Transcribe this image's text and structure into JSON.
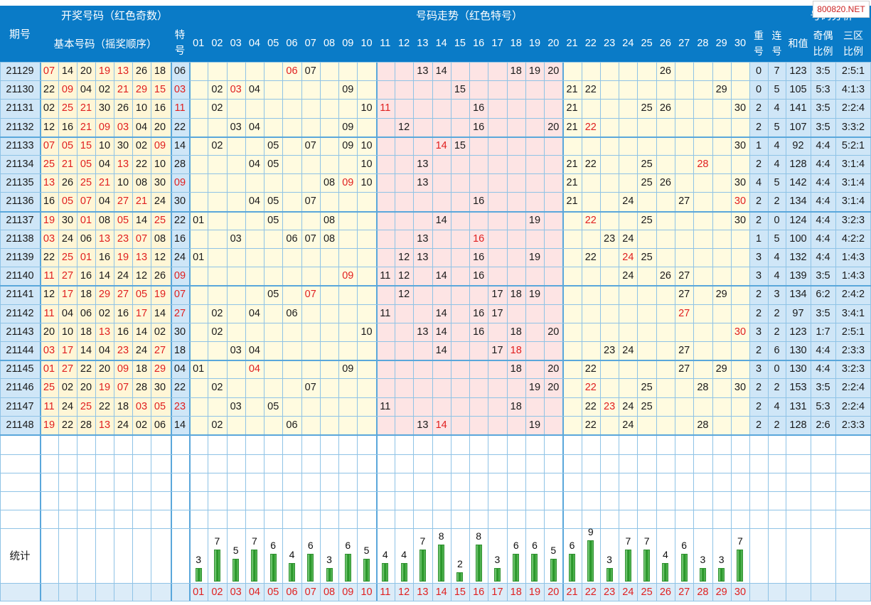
{
  "header": {
    "qihao": "期号",
    "kaijiang": "开奖号码（红色奇数）",
    "jiben": "基本号码（摇奖顺序）",
    "tehao": "特号",
    "zoushi": "号码走势（红色特号）",
    "fenxi": "号码分析",
    "chonghao": "重号",
    "lianhao": "连号",
    "hezhi": "和值",
    "jiou": "奇偶比例",
    "sanqu": "三区比例",
    "watermark": "800820.NET"
  },
  "numbers": [
    "01",
    "02",
    "03",
    "04",
    "05",
    "06",
    "07",
    "08",
    "09",
    "10",
    "11",
    "12",
    "13",
    "14",
    "15",
    "16",
    "17",
    "18",
    "19",
    "20",
    "21",
    "22",
    "23",
    "24",
    "25",
    "26",
    "27",
    "28",
    "29",
    "30"
  ],
  "stats_label": "统计",
  "colors": {
    "header_blue": "#0a7bc7",
    "odd_red": "#e02020",
    "bar_green": "#2e9a2e"
  },
  "chart_data": {
    "type": "table",
    "periods": [
      {
        "id": "21129",
        "basic": [
          "07",
          "14",
          "20",
          "19",
          "13",
          "26",
          "18"
        ],
        "special": "06",
        "repeat": "0",
        "consec": "7",
        "sum": "123",
        "odd_even": "3:5",
        "three_zone": "2:5:1"
      },
      {
        "id": "21130",
        "basic": [
          "22",
          "09",
          "04",
          "02",
          "21",
          "29",
          "15"
        ],
        "special": "03",
        "repeat": "0",
        "consec": "5",
        "sum": "105",
        "odd_even": "5:3",
        "three_zone": "4:1:3"
      },
      {
        "id": "21131",
        "basic": [
          "02",
          "25",
          "21",
          "30",
          "26",
          "10",
          "16"
        ],
        "special": "11",
        "repeat": "2",
        "consec": "4",
        "sum": "141",
        "odd_even": "3:5",
        "three_zone": "2:2:4"
      },
      {
        "id": "21132",
        "basic": [
          "12",
          "16",
          "21",
          "09",
          "03",
          "04",
          "20"
        ],
        "special": "22",
        "repeat": "2",
        "consec": "5",
        "sum": "107",
        "odd_even": "3:5",
        "three_zone": "3:3:2"
      },
      {
        "id": "21133",
        "basic": [
          "07",
          "05",
          "15",
          "10",
          "30",
          "02",
          "09"
        ],
        "special": "14",
        "repeat": "1",
        "consec": "4",
        "sum": "92",
        "odd_even": "4:4",
        "three_zone": "5:2:1"
      },
      {
        "id": "21134",
        "basic": [
          "25",
          "21",
          "05",
          "04",
          "13",
          "22",
          "10"
        ],
        "special": "28",
        "repeat": "2",
        "consec": "4",
        "sum": "128",
        "odd_even": "4:4",
        "three_zone": "3:1:4"
      },
      {
        "id": "21135",
        "basic": [
          "13",
          "26",
          "25",
          "21",
          "10",
          "08",
          "30"
        ],
        "special": "09",
        "repeat": "4",
        "consec": "5",
        "sum": "142",
        "odd_even": "4:4",
        "three_zone": "3:1:4"
      },
      {
        "id": "21136",
        "basic": [
          "16",
          "05",
          "07",
          "04",
          "27",
          "21",
          "24"
        ],
        "special": "30",
        "repeat": "2",
        "consec": "2",
        "sum": "134",
        "odd_even": "4:4",
        "three_zone": "3:1:4"
      },
      {
        "id": "21137",
        "basic": [
          "19",
          "30",
          "01",
          "08",
          "05",
          "14",
          "25"
        ],
        "special": "22",
        "repeat": "2",
        "consec": "0",
        "sum": "124",
        "odd_even": "4:4",
        "three_zone": "3:2:3"
      },
      {
        "id": "21138",
        "basic": [
          "03",
          "24",
          "06",
          "13",
          "23",
          "07",
          "08"
        ],
        "special": "16",
        "repeat": "1",
        "consec": "5",
        "sum": "100",
        "odd_even": "4:4",
        "three_zone": "4:2:2"
      },
      {
        "id": "21139",
        "basic": [
          "22",
          "25",
          "01",
          "16",
          "19",
          "13",
          "12"
        ],
        "special": "24",
        "repeat": "3",
        "consec": "4",
        "sum": "132",
        "odd_even": "4:4",
        "three_zone": "1:4:3"
      },
      {
        "id": "21140",
        "basic": [
          "11",
          "27",
          "16",
          "14",
          "24",
          "12",
          "26"
        ],
        "special": "09",
        "repeat": "3",
        "consec": "4",
        "sum": "139",
        "odd_even": "3:5",
        "three_zone": "1:4:3"
      },
      {
        "id": "21141",
        "basic": [
          "12",
          "17",
          "18",
          "29",
          "27",
          "05",
          "19"
        ],
        "special": "07",
        "repeat": "2",
        "consec": "3",
        "sum": "134",
        "odd_even": "6:2",
        "three_zone": "2:4:2"
      },
      {
        "id": "21142",
        "basic": [
          "11",
          "04",
          "06",
          "02",
          "16",
          "17",
          "14"
        ],
        "special": "27",
        "repeat": "2",
        "consec": "2",
        "sum": "97",
        "odd_even": "3:5",
        "three_zone": "3:4:1"
      },
      {
        "id": "21143",
        "basic": [
          "20",
          "10",
          "18",
          "13",
          "16",
          "14",
          "02"
        ],
        "special": "30",
        "repeat": "3",
        "consec": "2",
        "sum": "123",
        "odd_even": "1:7",
        "three_zone": "2:5:1"
      },
      {
        "id": "21144",
        "basic": [
          "03",
          "17",
          "14",
          "04",
          "23",
          "24",
          "27"
        ],
        "special": "18",
        "repeat": "2",
        "consec": "6",
        "sum": "130",
        "odd_even": "4:4",
        "three_zone": "2:3:3"
      },
      {
        "id": "21145",
        "basic": [
          "01",
          "27",
          "22",
          "20",
          "09",
          "18",
          "29"
        ],
        "special": "04",
        "repeat": "3",
        "consec": "0",
        "sum": "130",
        "odd_even": "4:4",
        "three_zone": "3:2:3"
      },
      {
        "id": "21146",
        "basic": [
          "25",
          "02",
          "20",
          "19",
          "07",
          "28",
          "30"
        ],
        "special": "22",
        "repeat": "2",
        "consec": "2",
        "sum": "153",
        "odd_even": "3:5",
        "three_zone": "2:2:4"
      },
      {
        "id": "21147",
        "basic": [
          "11",
          "24",
          "25",
          "22",
          "18",
          "03",
          "05"
        ],
        "special": "23",
        "repeat": "2",
        "consec": "4",
        "sum": "131",
        "odd_even": "5:3",
        "three_zone": "2:2:4"
      },
      {
        "id": "21148",
        "basic": [
          "19",
          "22",
          "28",
          "13",
          "24",
          "02",
          "06"
        ],
        "special": "14",
        "repeat": "2",
        "consec": "2",
        "sum": "128",
        "odd_even": "2:6",
        "three_zone": "2:3:3"
      }
    ],
    "counts": [
      3,
      7,
      5,
      7,
      6,
      4,
      6,
      3,
      6,
      5,
      4,
      4,
      7,
      8,
      2,
      8,
      3,
      6,
      6,
      5,
      6,
      9,
      3,
      7,
      7,
      4,
      6,
      3,
      3,
      7
    ]
  }
}
